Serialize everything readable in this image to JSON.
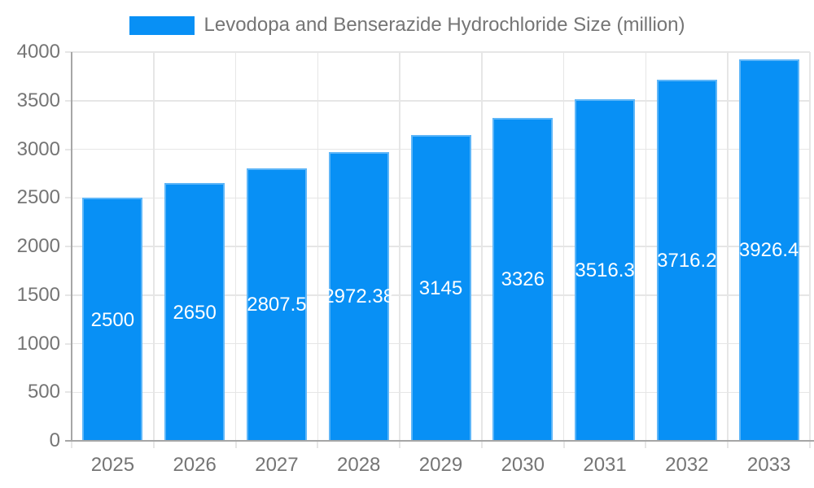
{
  "chart_data": {
    "type": "bar",
    "title": "",
    "series_name": "Levodopa and Benserazide Hydrochloride Size (million)",
    "categories": [
      "2025",
      "2026",
      "2027",
      "2028",
      "2029",
      "2030",
      "2031",
      "2032",
      "2033"
    ],
    "values": [
      2500,
      2650,
      2807.5,
      2972.38,
      3145,
      3326,
      3516.3,
      3716.2,
      3926.4
    ],
    "xlabel": "",
    "ylabel": "",
    "ylim": [
      0,
      4000
    ],
    "ytick_step": 500,
    "yticks": [
      0,
      500,
      1000,
      1500,
      2000,
      2500,
      3000,
      3500,
      4000
    ],
    "grid": true,
    "legend_position": "top",
    "data_labels_inside_bars": true
  },
  "colors": {
    "bar": "#0890F5",
    "grid": "#e6e6e6",
    "axis": "#a6a6a6",
    "tick_text": "#757575",
    "data_label": "#ffffff",
    "background": "#ffffff"
  }
}
